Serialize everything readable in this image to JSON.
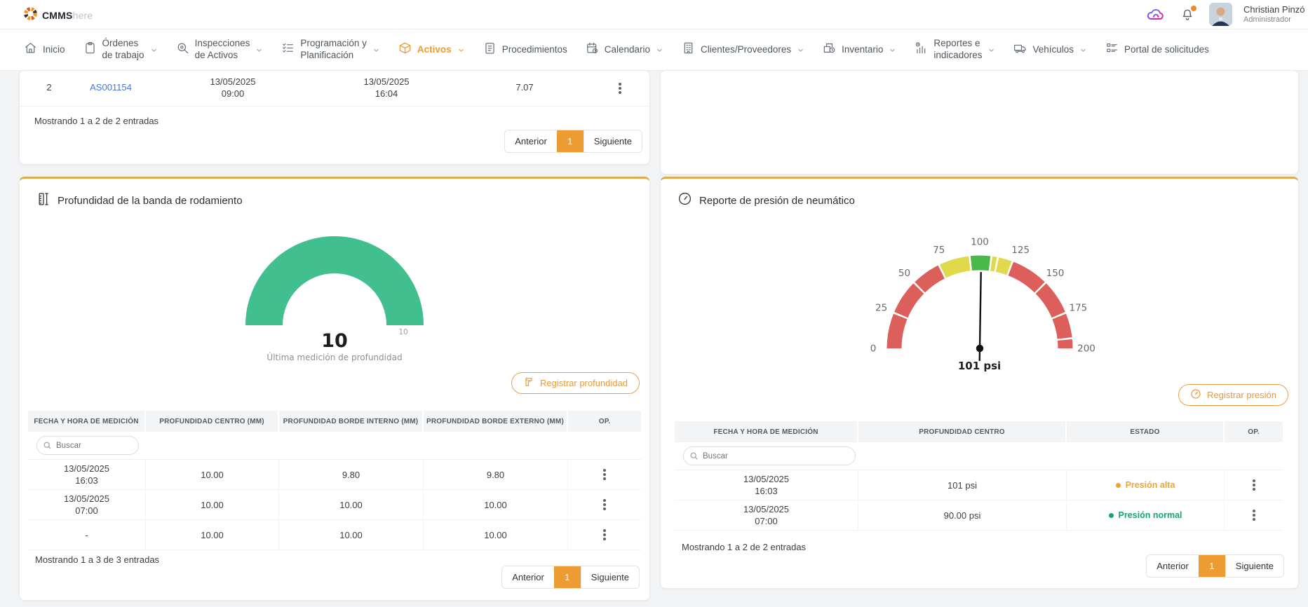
{
  "topbar": {
    "brand_bold": "CMMS",
    "brand_light": "here",
    "user_name": "Christian Pinzó",
    "user_role": "Administrador"
  },
  "nav": {
    "items": [
      {
        "label": "Inicio",
        "icon": "home",
        "chevron": false,
        "active": false
      },
      {
        "label": "Órdenes\nde trabajo",
        "icon": "clipboard",
        "chevron": true,
        "active": false
      },
      {
        "label": "Inspecciones\nde Activos",
        "icon": "inspection",
        "chevron": true,
        "active": false
      },
      {
        "label": "Programación y\nPlanificación",
        "icon": "checklist",
        "chevron": true,
        "active": false
      },
      {
        "label": "Activos",
        "icon": "cube",
        "chevron": true,
        "active": true
      },
      {
        "label": "Procedimientos",
        "icon": "procedures",
        "chevron": false,
        "active": false
      },
      {
        "label": "Calendario",
        "icon": "calendar",
        "chevron": true,
        "active": false
      },
      {
        "label": "Clientes/Proveedores",
        "icon": "building",
        "chevron": true,
        "active": false
      },
      {
        "label": "Inventario",
        "icon": "inventory",
        "chevron": true,
        "active": false
      },
      {
        "label": "Reportes e\nindicadores",
        "icon": "reports",
        "chevron": true,
        "active": false
      },
      {
        "label": "Vehículos",
        "icon": "vehicle",
        "chevron": true,
        "active": false
      },
      {
        "label": "Portal de solicitudes",
        "icon": "portal",
        "chevron": false,
        "active": false
      }
    ]
  },
  "pagination": {
    "prev": "Anterior",
    "page": "1",
    "next": "Siguiente"
  },
  "top_table": {
    "row": {
      "number": "2",
      "asset": "AS001154",
      "start_date": "13/05/2025",
      "start_time": "09:00",
      "end_date": "13/05/2025",
      "end_time": "16:04",
      "hours": "7.07"
    },
    "showing": "Mostrando 1 a 2 de 2 entradas"
  },
  "tread_card": {
    "title": "Profundidad de la banda de rodamiento",
    "register_button": "Registrar profundidad",
    "search_placeholder": "Buscar",
    "headers": [
      "FECHA Y HORA DE MEDICIÓN",
      "PROFUNDIDAD CENTRO (MM)",
      "PROFUNDIDAD BORDE INTERNO (MM)",
      "PROFUNDIDAD BORDE EXTERNO (MM)",
      "OP."
    ],
    "rows": [
      {
        "date": "13/05/2025",
        "time": "16:03",
        "centro": "10.00",
        "interno": "9.80",
        "externo": "9.80"
      },
      {
        "date": "13/05/2025",
        "time": "07:00",
        "centro": "10.00",
        "interno": "10.00",
        "externo": "10.00"
      },
      {
        "date": "-",
        "time": "",
        "centro": "10.00",
        "interno": "10.00",
        "externo": "10.00"
      }
    ],
    "showing": "Mostrando 1 a 3 de 3 entradas"
  },
  "pressure_card": {
    "title": "Reporte de presión de neumático",
    "register_button": "Registrar presión",
    "search_placeholder": "Buscar",
    "headers": [
      "FECHA Y HORA DE MEDICIÓN",
      "PROFUNDIDAD CENTRO",
      "ESTADO",
      "OP."
    ],
    "rows": [
      {
        "date": "13/05/2025",
        "time": "16:03",
        "value": "101 psi",
        "status": "Presión alta",
        "status_color": "#EDA437"
      },
      {
        "date": "13/05/2025",
        "time": "07:00",
        "value": "90.00 psi",
        "status": "Presión normal",
        "status_color": "#17A471"
      }
    ],
    "showing": "Mostrando 1 a 2 de 2 entradas"
  },
  "chart_data": [
    {
      "type": "gauge",
      "title": "Profundidad de la banda de rodamiento",
      "value": 10,
      "min": 0,
      "max": 10,
      "display_value": "10",
      "max_tick_label": "10",
      "caption": "Última medición de profundidad",
      "color": "#41BF8E",
      "shape": "half-donut"
    },
    {
      "type": "gauge",
      "title": "Reporte de presión de neumático",
      "value": 101,
      "min": 0,
      "max": 200,
      "display_value": "101 psi",
      "ticks": [
        0,
        25,
        50,
        75,
        100,
        125,
        150,
        175,
        200
      ],
      "segments": [
        [
          0,
          25,
          "#DC5F5B"
        ],
        [
          25,
          50,
          "#DC5F5B"
        ],
        [
          50,
          71,
          "#DC5F5B"
        ],
        [
          71,
          93,
          "#E0D94B"
        ],
        [
          93,
          108,
          "#4BB94A"
        ],
        [
          108,
          112.5,
          "#E0D94B"
        ],
        [
          112.5,
          123,
          "#E0D94B"
        ],
        [
          123,
          150,
          "#DC5F5B"
        ],
        [
          150,
          175,
          "#DC5F5B"
        ],
        [
          175,
          193,
          "#DC5F5B"
        ],
        [
          193,
          200,
          "#DC5F5B"
        ]
      ],
      "needle_color": "#111111"
    }
  ]
}
